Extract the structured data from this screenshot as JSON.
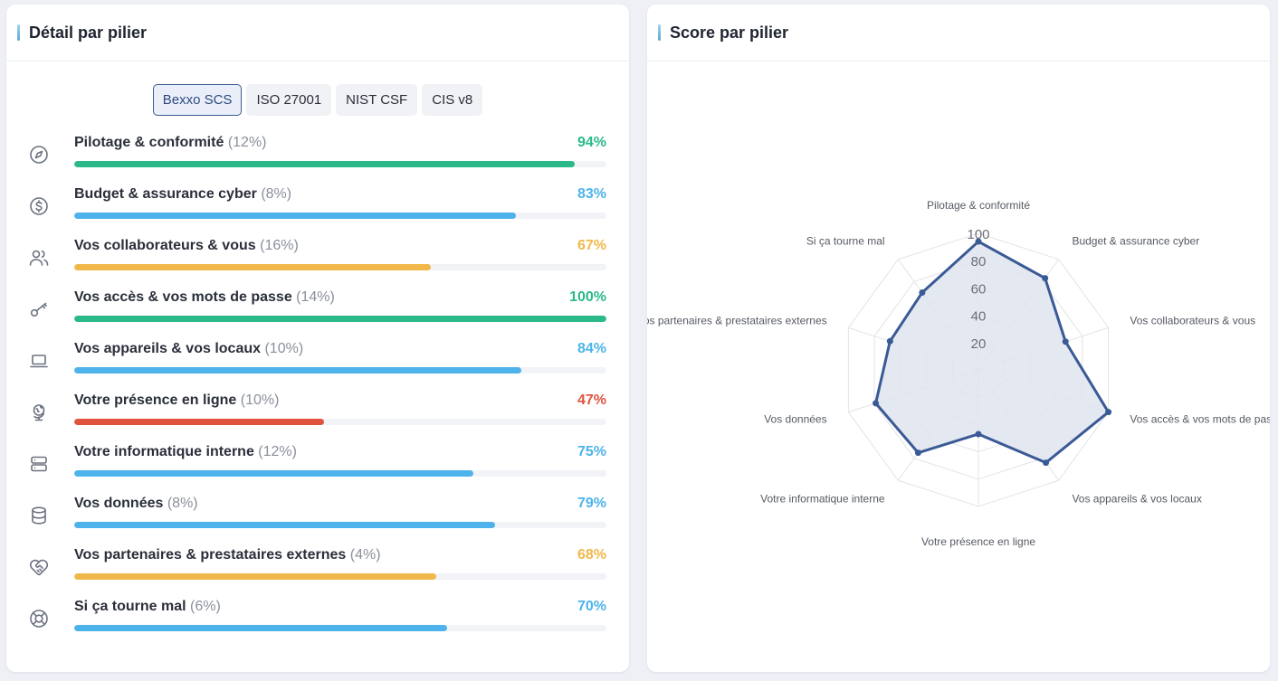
{
  "left_card": {
    "title": "Détail par pilier",
    "tabs": [
      {
        "label": "Bexxo SCS",
        "active": true
      },
      {
        "label": "ISO 27001",
        "active": false
      },
      {
        "label": "NIST CSF",
        "active": false
      },
      {
        "label": "CIS v8",
        "active": false
      }
    ],
    "pillars": [
      {
        "name": "Pilotage & conformité",
        "weight": "(12%)",
        "score_label": "94%",
        "score": 94,
        "color": "#2bb98a",
        "icon": "compass-icon"
      },
      {
        "name": "Budget & assurance cyber",
        "weight": "(8%)",
        "score_label": "83%",
        "score": 83,
        "color": "#4db3ea",
        "icon": "dollar-circle-icon"
      },
      {
        "name": "Vos collaborateurs & vous",
        "weight": "(16%)",
        "score_label": "67%",
        "score": 67,
        "color": "#f0b84a",
        "icon": "users-icon"
      },
      {
        "name": "Vos accès & vos mots de passe",
        "weight": "(14%)",
        "score_label": "100%",
        "score": 100,
        "color": "#2bb98a",
        "icon": "key-icon"
      },
      {
        "name": "Vos appareils & vos locaux",
        "weight": "(10%)",
        "score_label": "84%",
        "score": 84,
        "color": "#4db3ea",
        "icon": "laptop-icon"
      },
      {
        "name": "Votre présence en ligne",
        "weight": "(10%)",
        "score_label": "47%",
        "score": 47,
        "color": "#e0533f",
        "icon": "globe-stand-icon"
      },
      {
        "name": "Votre informatique interne",
        "weight": "(12%)",
        "score_label": "75%",
        "score": 75,
        "color": "#4db3ea",
        "icon": "server-icon"
      },
      {
        "name": "Vos données",
        "weight": "(8%)",
        "score_label": "79%",
        "score": 79,
        "color": "#4db3ea",
        "icon": "database-icon"
      },
      {
        "name": "Vos partenaires & prestataires externes",
        "weight": "(4%)",
        "score_label": "68%",
        "score": 68,
        "color": "#f0b84a",
        "icon": "handshake-icon"
      },
      {
        "name": "Si ça tourne mal",
        "weight": "(6%)",
        "score_label": "70%",
        "score": 70,
        "color": "#4db3ea",
        "icon": "lifebuoy-icon"
      }
    ]
  },
  "right_card": {
    "title": "Score par pilier"
  },
  "chart_data": {
    "type": "radar",
    "title": "",
    "categories": [
      "Pilotage & conformité",
      "Budget & assurance cyber",
      "Vos collaborateurs & vous",
      "Vos accès & vos mots de passe",
      "Vos appareils & vos locaux",
      "Votre présence en ligne",
      "Votre informatique interne",
      "Vos données",
      "Vos partenaires & prestataires externes",
      "Si ça tourne mal"
    ],
    "series": [
      {
        "values": [
          94,
          83,
          67,
          100,
          84,
          47,
          75,
          79,
          68,
          70
        ]
      }
    ],
    "rlim": [
      0,
      100
    ],
    "ticks": [
      20,
      40,
      60,
      80,
      100
    ],
    "grid": true,
    "line_color": "#3a5a96",
    "fill_color": "#dfe4ef"
  }
}
